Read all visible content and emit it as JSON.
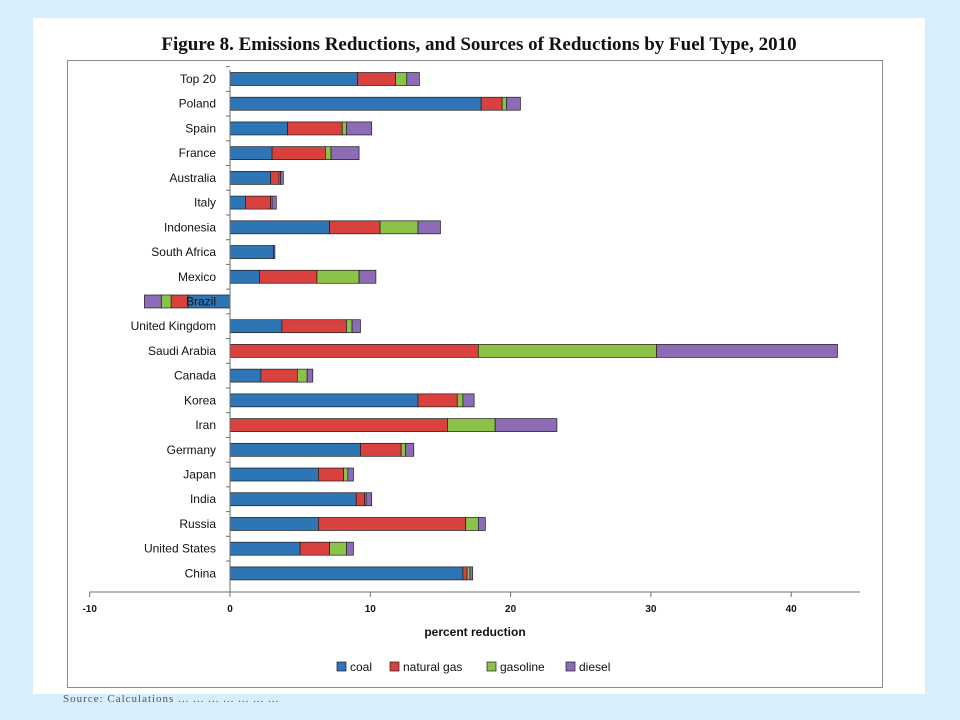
{
  "slide": {
    "background": "#d7eefc",
    "source_note": "Source: Calculations ... ... ... ... ... ... ..."
  },
  "chart_data": {
    "type": "bar",
    "orientation": "horizontal",
    "stacked": true,
    "title": "Figure 8. Emissions Reductions, and Sources of Reductions by Fuel Type, 2010",
    "xlabel": "percent reduction",
    "ylabel": "",
    "xlim": [
      -10,
      45
    ],
    "xticks": [
      -10,
      0,
      10,
      20,
      30,
      40
    ],
    "grid": false,
    "legend_position": "bottom",
    "categories": [
      "Top 20",
      "Poland",
      "Spain",
      "France",
      "Australia",
      "Italy",
      "Indonesia",
      "South Africa",
      "Mexico",
      "Brazil",
      "United Kingdom",
      "Saudi Arabia",
      "Canada",
      "Korea",
      "Iran",
      "Germany",
      "Japan",
      "India",
      "Russia",
      "United States",
      "China"
    ],
    "series": [
      {
        "name": "coal",
        "color": "#2e75b6",
        "values": [
          9.1,
          17.9,
          4.1,
          3.0,
          2.9,
          1.1,
          7.1,
          3.1,
          2.1,
          -3.0,
          3.7,
          0,
          2.2,
          13.4,
          0,
          9.3,
          6.3,
          9.0,
          6.3,
          5.0,
          16.6
        ]
      },
      {
        "name": "natural gas",
        "color": "#d9413e",
        "values": [
          2.7,
          1.5,
          3.9,
          3.8,
          0.6,
          1.8,
          3.6,
          0,
          4.1,
          -1.2,
          4.6,
          17.7,
          2.6,
          2.8,
          15.5,
          2.9,
          1.8,
          0.6,
          10.5,
          2.1,
          0.3
        ]
      },
      {
        "name": "gasoline",
        "color": "#8bc34a",
        "values": [
          0.8,
          0.3,
          0.3,
          0.4,
          0.1,
          0.1,
          2.7,
          0,
          3.0,
          -0.7,
          0.4,
          12.7,
          0.7,
          0.4,
          3.4,
          0.3,
          0.3,
          0.1,
          0.9,
          1.2,
          0.2
        ]
      },
      {
        "name": "diesel",
        "color": "#8c6cb4",
        "values": [
          0.9,
          1.0,
          1.8,
          2.0,
          0.2,
          0.3,
          1.6,
          0.1,
          1.2,
          -1.2,
          0.6,
          12.9,
          0.4,
          0.8,
          4.4,
          0.6,
          0.4,
          0.4,
          0.5,
          0.5,
          0.2
        ]
      }
    ]
  }
}
